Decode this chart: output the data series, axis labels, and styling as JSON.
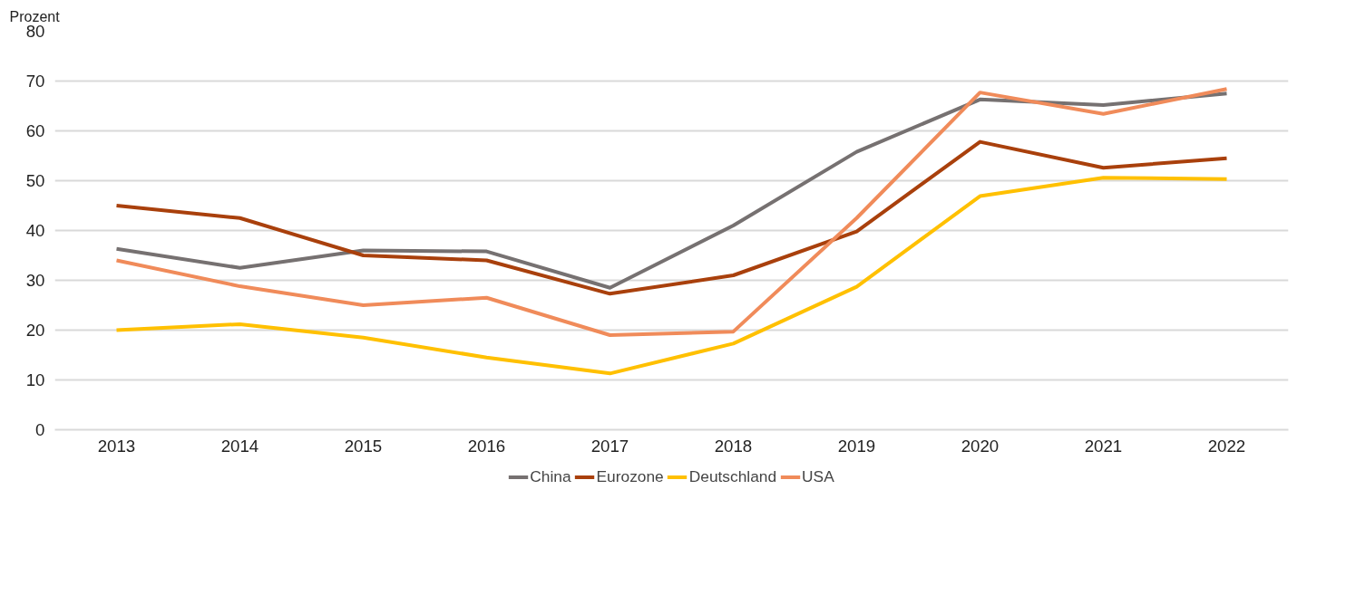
{
  "chart_data": {
    "type": "line",
    "ylabel": "Prozent",
    "categories": [
      "2013",
      "2014",
      "2015",
      "2016",
      "2017",
      "2018",
      "2019",
      "2020",
      "2021",
      "2022"
    ],
    "series": [
      {
        "name": "China",
        "color": "#767171",
        "values": [
          36.3,
          32.5,
          36,
          35.8,
          28.5,
          41,
          55.8,
          66.3,
          65.2,
          67.5
        ]
      },
      {
        "name": "Eurozone",
        "color": "#a9400c",
        "values": [
          45,
          42.5,
          35,
          34,
          27.3,
          31,
          39.8,
          57.8,
          52.6,
          54.5
        ]
      },
      {
        "name": "Deutschland",
        "color": "#ffc000",
        "values": [
          20,
          21.2,
          18.5,
          14.5,
          11.3,
          17.3,
          28.7,
          46.9,
          50.6,
          50.3
        ]
      },
      {
        "name": "USA",
        "color": "#f08b5a",
        "values": [
          34,
          28.8,
          25,
          26.5,
          19,
          19.7,
          42.5,
          67.7,
          63.4,
          68.4
        ]
      }
    ],
    "ylim": [
      0,
      80
    ],
    "yticks": [
      0,
      10,
      20,
      30,
      40,
      50,
      60,
      70,
      80
    ],
    "grid": "y",
    "legend": "bottom",
    "marker": "none",
    "line_style": "solid"
  }
}
